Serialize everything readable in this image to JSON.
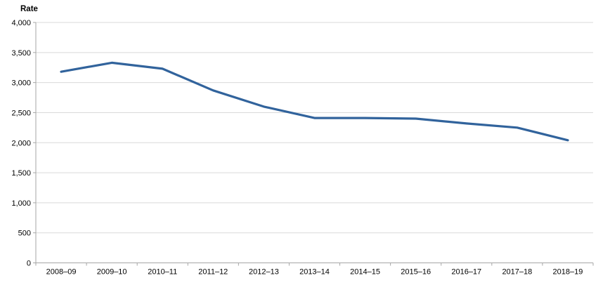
{
  "chart_data": {
    "type": "line",
    "title": "Rate",
    "categories": [
      "2008–09",
      "2009–10",
      "2010–11",
      "2011–12",
      "2012–13",
      "2013–14",
      "2014–15",
      "2015–16",
      "2016–17",
      "2017–18",
      "2018–19"
    ],
    "series": [
      {
        "name": "Rate",
        "values": [
          3180,
          3330,
          3230,
          2870,
          2600,
          2410,
          2410,
          2400,
          2320,
          2250,
          2040
        ],
        "color": "#31639C"
      }
    ],
    "xlabel": "",
    "ylabel": "Rate",
    "ylim": [
      0,
      4000
    ],
    "ytick_step": 500,
    "grid": "horizontal-only",
    "legend": "none",
    "colors": {
      "line": "#31639C",
      "axis": "#a6a6a6",
      "gridline": "#d9d9d9",
      "text": "#000000",
      "background": "#ffffff"
    }
  }
}
